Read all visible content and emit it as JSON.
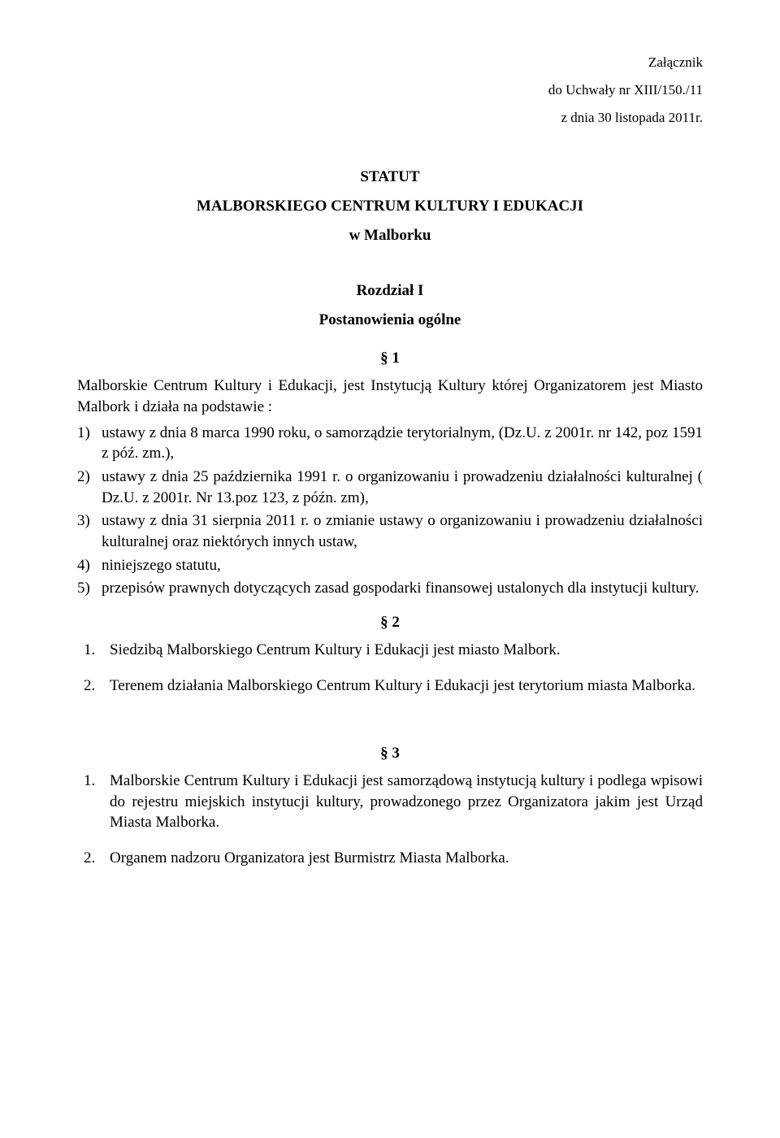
{
  "header": {
    "attachment": "Załącznik",
    "resolution": "do Uchwały nr XIII/150./11",
    "date": "z dnia 30 listopada 2011r."
  },
  "title": {
    "line1": "STATUT",
    "line2": "MALBORSKIEGO CENTRUM  KULTURY  I  EDUKACJI",
    "line3": "w Malborku"
  },
  "chapter1": {
    "heading": "Rozdział I",
    "subheading": "Postanowienia ogólne"
  },
  "s1": {
    "num": "§ 1",
    "intro": "Malborskie Centrum Kultury i Edukacji, jest Instytucją  Kultury której Organizatorem jest Miasto Malbork i  działa na podstawie :",
    "items": [
      {
        "n": "1)",
        "t": "ustawy z dnia 8 marca 1990 roku, o samorządzie terytorialnym, (Dz.U. z 2001r. nr 142, poz 1591 z póź. zm.),"
      },
      {
        "n": "2)",
        "t": "ustawy z dnia 25 października 1991 r. o organizowaniu i prowadzeniu działalności kulturalnej ( Dz.U. z 2001r. Nr 13.poz 123, z późn. zm),"
      },
      {
        "n": "3)",
        "t": " ustawy z dnia 31 sierpnia 2011 r. o zmianie ustawy o organizowaniu i prowadzeniu działalności kulturalnej oraz niektórych innych ustaw,"
      },
      {
        "n": "4)",
        "t": "niniejszego statutu,"
      },
      {
        "n": "5)",
        "t": "przepisów prawnych dotyczących zasad gospodarki finansowej ustalonych dla instytucji kultury."
      }
    ]
  },
  "s2": {
    "num": "§ 2",
    "items": [
      {
        "n": "1.",
        "t": "Siedzibą Malborskiego Centrum Kultury i Edukacji  jest miasto Malbork."
      },
      {
        "n": "2.",
        "t": "Terenem działania Malborskiego Centrum Kultury i Edukacji jest terytorium miasta Malborka."
      }
    ]
  },
  "s3": {
    "num": "§ 3",
    "items": [
      {
        "n": "1.",
        "t": "Malborskie Centrum Kultury i Edukacji jest samorządową instytucją kultury   i podlega wpisowi do rejestru miejskich instytucji kultury, prowadzonego przez Organizatora jakim jest Urząd Miasta Malborka."
      },
      {
        "n": "2.",
        "t": "Organem nadzoru Organizatora jest Burmistrz Miasta Malborka."
      }
    ]
  }
}
